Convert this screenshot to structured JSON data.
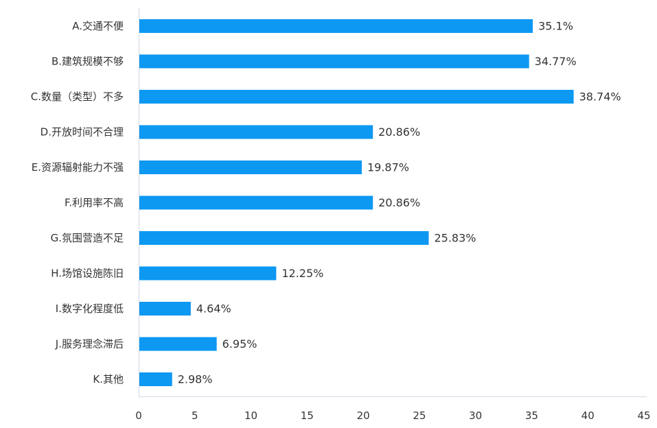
{
  "chart_data": {
    "type": "bar",
    "orientation": "horizontal",
    "categories": [
      "A.交通不便",
      "B.建筑规模不够",
      "C.数量（类型）不多",
      "D.开放时间不合理",
      "E.资源辐射能力不强",
      "F.利用率不高",
      "G.氛围营造不足",
      "H.场馆设施陈旧",
      "I.数字化程度低",
      "J.服务理念滞后",
      "K.其他"
    ],
    "values": [
      35.1,
      34.77,
      38.74,
      20.86,
      19.87,
      20.86,
      25.83,
      12.25,
      4.64,
      6.95,
      2.98
    ],
    "value_labels": [
      "35.1%",
      "34.77%",
      "38.74%",
      "20.86%",
      "19.87%",
      "20.86%",
      "25.83%",
      "12.25%",
      "4.64%",
      "6.95%",
      "2.98%"
    ],
    "xlim": [
      0,
      45
    ],
    "xticks": [
      0,
      5,
      10,
      15,
      20,
      25,
      30,
      35,
      40,
      45
    ],
    "grid": false,
    "bar_color": "#0d98f2",
    "title": "",
    "xlabel": "",
    "ylabel": ""
  }
}
